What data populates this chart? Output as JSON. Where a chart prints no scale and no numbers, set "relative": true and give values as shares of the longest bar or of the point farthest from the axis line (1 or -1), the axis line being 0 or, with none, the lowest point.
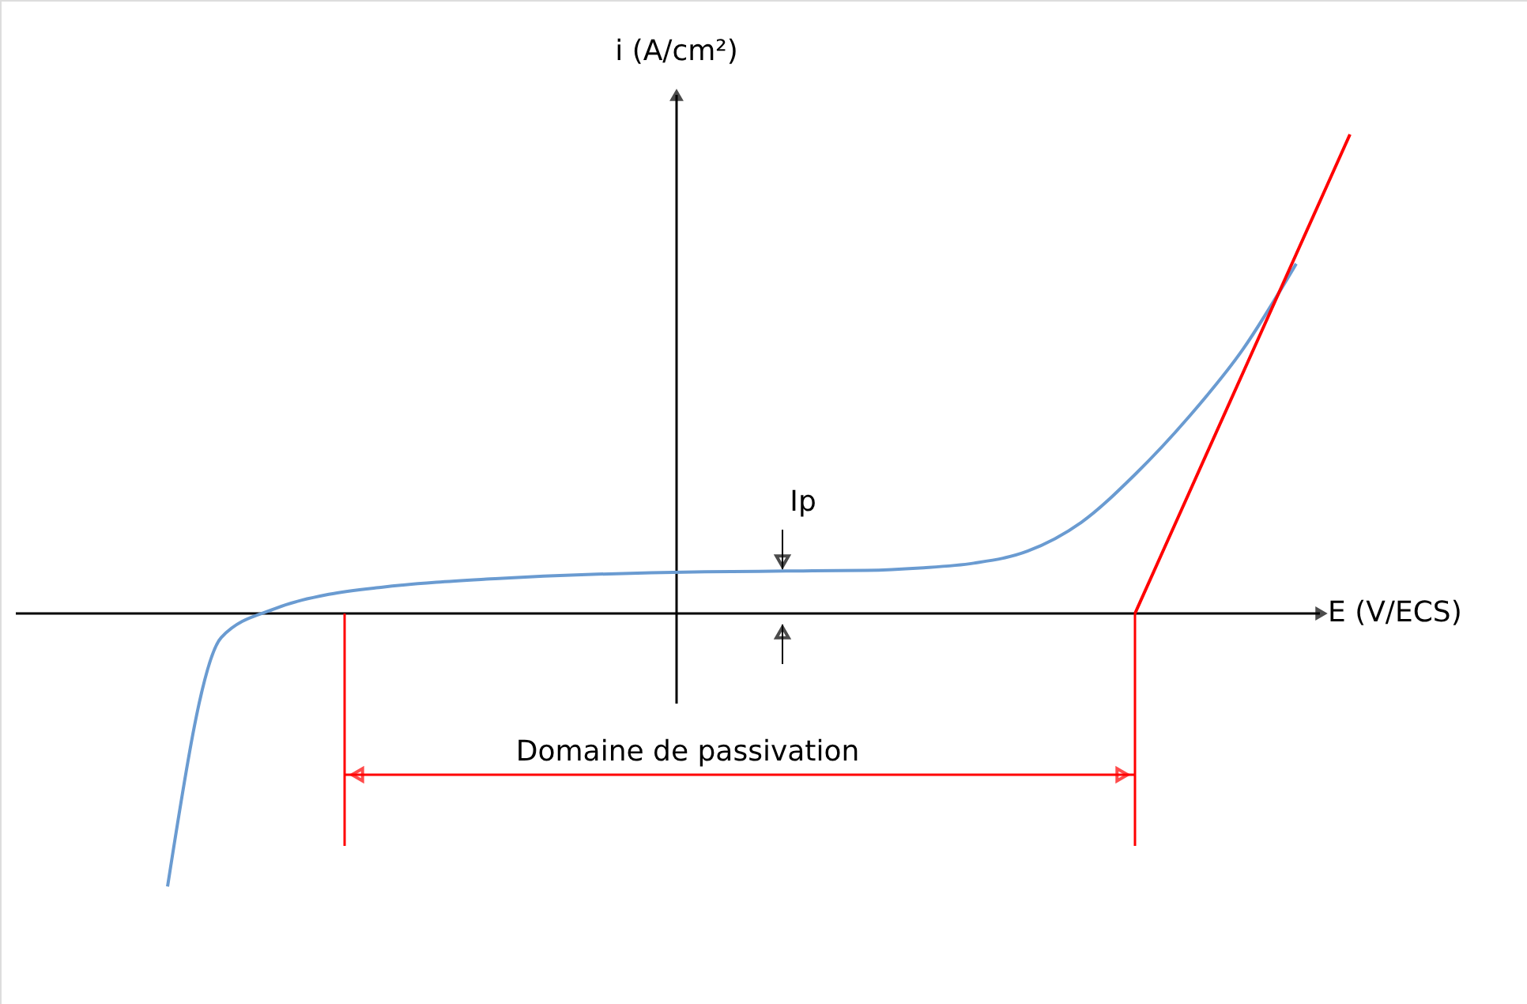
{
  "chart_data": {
    "type": "line",
    "relative": true,
    "xlabel": "E (V/ECS)",
    "ylabel": "i (A/cm²)",
    "categories": [
      null,
      null,
      null,
      null,
      null,
      null,
      null,
      null,
      null,
      null,
      null,
      null,
      null,
      null,
      null,
      null,
      null,
      null,
      null,
      null,
      null,
      null,
      null
    ],
    "series": [
      {
        "color": "#6a9bd1",
        "values": [
          -0.57,
          -0.05,
          0.01,
          0.04,
          0.055,
          0.065,
          0.072,
          0.078,
          0.082,
          0.085,
          0.087,
          0.088,
          0.089,
          0.09,
          0.095,
          0.105,
          0.13,
          0.19,
          0.29,
          0.41,
          0.55,
          0.73,
          null
        ]
      },
      {
        "color": "#ff0000",
        "values": [
          null,
          null,
          null,
          null,
          null,
          null,
          null,
          null,
          null,
          null,
          null,
          null,
          null,
          null,
          null,
          null,
          null,
          null,
          0,
          0.25,
          0.5,
          0.75,
          1
        ]
      }
    ],
    "annotations": [
      "Ip",
      "Domaine de passivation"
    ],
    "grid": false,
    "legend": false
  }
}
